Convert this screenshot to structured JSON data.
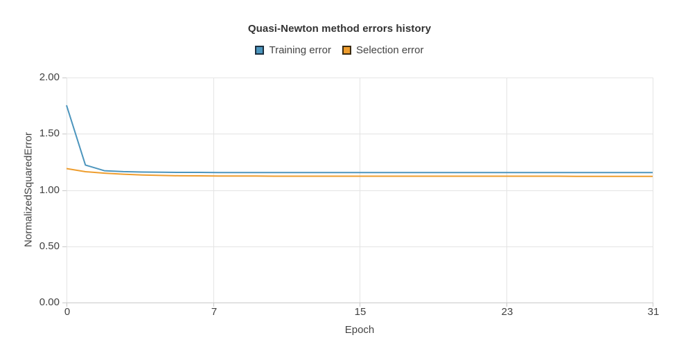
{
  "chart_data": {
    "type": "line",
    "title": "Quasi-Newton method errors history",
    "xlabel": "Epoch",
    "ylabel": "NormalizedSquaredError",
    "xlim": [
      0,
      31
    ],
    "ylim": [
      0,
      2
    ],
    "grid": true,
    "legend_position": "top-center",
    "x_ticks": {
      "values": [
        0,
        7,
        15,
        23,
        31
      ],
      "labels": [
        "0",
        "7",
        "15",
        "23",
        "31"
      ]
    },
    "y_ticks": {
      "values": [
        0,
        0.5,
        1.0,
        1.5,
        2.0
      ],
      "labels": [
        "0.00",
        "0.50",
        "1.00",
        "1.50",
        "2.00"
      ]
    },
    "x": [
      0,
      1,
      2,
      3,
      4,
      5,
      6,
      7,
      8,
      9,
      10,
      11,
      12,
      13,
      14,
      15,
      16,
      17,
      18,
      19,
      20,
      21,
      22,
      23,
      24,
      25,
      26,
      27,
      28,
      29,
      30,
      31
    ],
    "series": [
      {
        "name": "Training error",
        "color": "#4c95bd",
        "values": [
          1.753,
          1.222,
          1.172,
          1.164,
          1.16,
          1.158,
          1.157,
          1.157,
          1.156,
          1.156,
          1.156,
          1.156,
          1.156,
          1.156,
          1.156,
          1.156,
          1.156,
          1.156,
          1.156,
          1.155,
          1.155,
          1.155,
          1.155,
          1.155,
          1.155,
          1.155,
          1.155,
          1.155,
          1.155,
          1.155,
          1.155,
          1.155
        ]
      },
      {
        "name": "Selection error",
        "color": "#ee9d2e",
        "values": [
          1.191,
          1.163,
          1.15,
          1.141,
          1.134,
          1.13,
          1.127,
          1.126,
          1.125,
          1.124,
          1.124,
          1.123,
          1.123,
          1.123,
          1.123,
          1.123,
          1.123,
          1.123,
          1.123,
          1.123,
          1.123,
          1.123,
          1.123,
          1.123,
          1.123,
          1.123,
          1.123,
          1.122,
          1.122,
          1.122,
          1.122,
          1.122
        ]
      }
    ]
  },
  "legend": {
    "items": [
      {
        "label": "Training error",
        "swatch_fill": "#4c95bd",
        "swatch_border": "#1d2f3f"
      },
      {
        "label": "Selection error",
        "swatch_fill": "#ee9d2e",
        "swatch_border": "#3a2a10"
      }
    ]
  },
  "colors": {
    "gridline": "#e4e4e4",
    "axis_line": "#c8c8c8",
    "tick_mark": "#c8c8c8",
    "tick_label": "#414141",
    "title_text": "#333333"
  }
}
